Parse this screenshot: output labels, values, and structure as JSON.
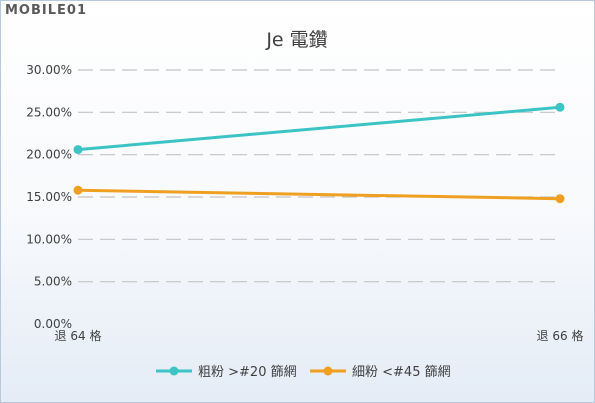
{
  "watermark": "MOBILE01",
  "chart_data": {
    "type": "line",
    "title": "Je 電鑽",
    "categories": [
      "退 64 格",
      "退 66 格"
    ],
    "series": [
      {
        "name": "粗粉 >#20 篩網",
        "values": [
          20.6,
          25.6
        ],
        "color": "#3cc4c4"
      },
      {
        "name": "細粉 <#45 篩網",
        "values": [
          15.8,
          14.8
        ],
        "color": "#f0a020"
      }
    ],
    "ylim": [
      0,
      30
    ],
    "yticks": [
      "0.00%",
      "5.00%",
      "10.00%",
      "15.00%",
      "20.00%",
      "25.00%",
      "30.00%"
    ],
    "xlabel": "",
    "ylabel": "",
    "grid": true,
    "legend": "bottom"
  }
}
